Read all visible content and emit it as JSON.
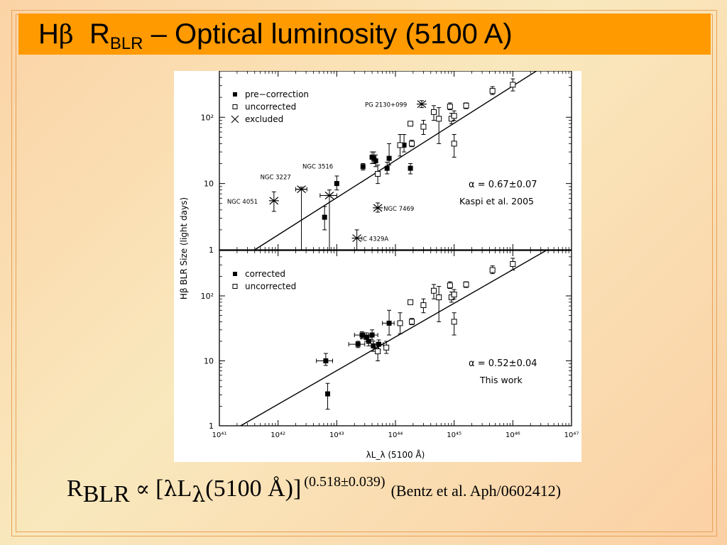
{
  "slide": {
    "title": {
      "prefix": "H",
      "beta": "β",
      "r": "R",
      "sub": "BLR",
      "rest": " – Optical luminosity (5100 A)"
    },
    "formula": {
      "r": "R",
      "sub": "BLR",
      "propto": "∝",
      "open": "[",
      "lambda": "λ",
      "l": "L",
      "lsub": "λ",
      "arg": "(5100 Å)]",
      "exponent": "(0.518±0.039)",
      "citation": "(Bentz et al.  Aph/0602412)"
    },
    "colors": {
      "title_bar": "#ff9a00",
      "frame": "#e8a25a"
    }
  },
  "chart_data": [
    {
      "type": "scatter",
      "panel": "top",
      "xscale": "log",
      "yscale": "log",
      "xlim": [
        1e+41,
        1e+47
      ],
      "ylim": [
        1,
        500
      ],
      "ylabel": "Hβ BLR Size (light days)",
      "xlabel": "",
      "y_ticks": [
        "1",
        "10",
        "10²"
      ],
      "legend": [
        {
          "marker": "filled-square",
          "label": "pre−correction"
        },
        {
          "marker": "open-square",
          "label": "uncorrected"
        },
        {
          "marker": "cross",
          "label": "excluded"
        }
      ],
      "legend_position": "top-left",
      "annotation": [
        "α = 0.67±0.07",
        "Kaspi et al. 2005"
      ],
      "fit_line": {
        "slope": 0.67,
        "points": [
          [
            4e+41,
            1.0
          ],
          [
            4.6e+46,
            700
          ]
        ]
      },
      "series": [
        {
          "name": "pre−correction",
          "marker": "filled-square",
          "points": [
            {
              "x": 6.2e+42,
              "y": 3.1,
              "yerr": [
                2.0,
                4.5
              ]
            },
            {
              "x": 1e+43,
              "y": 10,
              "yerr": [
                8,
                13
              ]
            },
            {
              "x": 2.8e+43,
              "y": 18,
              "yerr": [
                16,
                20
              ]
            },
            {
              "x": 4e+43,
              "y": 25,
              "yerr": [
                20,
                30
              ]
            },
            {
              "x": 4.3e+43,
              "y": 24,
              "yerr": [
                20,
                30
              ]
            },
            {
              "x": 4.6e+43,
              "y": 22,
              "yerr": [
                18,
                27
              ]
            },
            {
              "x": 7.2e+43,
              "y": 17,
              "yerr": [
                14,
                21
              ]
            },
            {
              "x": 7.8e+43,
              "y": 24,
              "yerr": [
                19,
                40
              ]
            },
            {
              "x": 1.4e+44,
              "y": 38,
              "yerr": [
                30,
                55
              ]
            },
            {
              "x": 1.8e+44,
              "y": 17,
              "yerr": [
                14,
                20
              ]
            }
          ]
        },
        {
          "name": "uncorrected",
          "marker": "open-square",
          "points": [
            {
              "x": 5e+43,
              "y": 14,
              "yerr": [
                10,
                19
              ]
            },
            {
              "x": 1.2e+44,
              "y": 38,
              "yerr": [
                26,
                55
              ]
            },
            {
              "x": 1.8e+44,
              "y": 80,
              "yerr": [
                75,
                86
              ]
            },
            {
              "x": 1.9e+44,
              "y": 40,
              "yerr": [
                36,
                45
              ]
            },
            {
              "x": 3e+44,
              "y": 72,
              "yerr": [
                55,
                90
              ]
            },
            {
              "x": 4.5e+44,
              "y": 120,
              "yerr": [
                90,
                150
              ]
            },
            {
              "x": 5.5e+44,
              "y": 95,
              "yerr": [
                40,
                140
              ]
            },
            {
              "x": 8.5e+44,
              "y": 145,
              "yerr": [
                130,
                165
              ]
            },
            {
              "x": 9e+44,
              "y": 95,
              "yerr": [
                80,
                115
              ]
            },
            {
              "x": 1e+45,
              "y": 105,
              "yerr": [
                90,
                125
              ]
            },
            {
              "x": 1e+45,
              "y": 40,
              "yerr": [
                25,
                55
              ]
            },
            {
              "x": 1.6e+45,
              "y": 150,
              "yerr": [
                135,
                165
              ]
            },
            {
              "x": 4.5e+45,
              "y": 250,
              "yerr": [
                220,
                290
              ]
            },
            {
              "x": 1e+46,
              "y": 310,
              "yerr": [
                250,
                380
              ]
            }
          ]
        },
        {
          "name": "excluded",
          "marker": "cross",
          "points": [
            {
              "x": 8.5e+41,
              "y": 5.5,
              "yerr": [
                3.8,
                7.5
              ],
              "label": "NGC 4051"
            },
            {
              "x": 2.5e+42,
              "y": 8.2,
              "yerr": [
                1.0,
                8.8
              ],
              "label": "NGC 3227",
              "xerr": [
                2e+42,
                3.1e+42
              ]
            },
            {
              "x": 7.5e+42,
              "y": 6.6,
              "yerr": [
                1.0,
                8.0
              ],
              "label": "NGC 3516",
              "xerr": [
                5.2e+42,
                1e+43
              ]
            },
            {
              "x": 2.2e+43,
              "y": 1.5,
              "yerr": [
                1.0,
                2.0
              ],
              "label": "IC 4329A"
            },
            {
              "x": 5e+43,
              "y": 4.3,
              "yerr": [
                3.7,
                5.1
              ],
              "label": "NGC 7469"
            },
            {
              "x": 2.8e+44,
              "y": 158,
              "yerr": [
                140,
                178
              ],
              "label": "PG 2130+099"
            }
          ]
        }
      ]
    },
    {
      "type": "scatter",
      "panel": "bottom",
      "xscale": "log",
      "yscale": "log",
      "xlim": [
        1e+41,
        1e+47
      ],
      "ylim": [
        1,
        500
      ],
      "xlabel": "λL_λ (5100 Å)",
      "ylabel": "Hβ BLR Size (light days)",
      "x_ticks": [
        "10⁴¹",
        "10⁴²",
        "10⁴³",
        "10⁴⁴",
        "10⁴⁵",
        "10⁴⁶",
        "10⁴⁷"
      ],
      "y_ticks": [
        "1",
        "10",
        "10²"
      ],
      "legend": [
        {
          "marker": "filled-square",
          "label": "corrected"
        },
        {
          "marker": "open-square",
          "label": "uncorrected"
        }
      ],
      "legend_position": "top-left",
      "annotation": [
        "α = 0.52±0.04",
        "This work"
      ],
      "fit_line": {
        "slope": 0.52,
        "points": [
          [
            2.3e+41,
            1.0
          ],
          [
            4.6e+46,
            560
          ]
        ]
      },
      "series": [
        {
          "name": "corrected",
          "marker": "filled-square",
          "points": [
            {
              "x": 6.5e+42,
              "y": 10,
              "yerr": [
                8.5,
                13
              ],
              "xerr": [
                4.5e+42,
                8.5e+42
              ]
            },
            {
              "x": 7e+42,
              "y": 3.1,
              "yerr": [
                1.8,
                4.5
              ]
            },
            {
              "x": 2.3e+43,
              "y": 18,
              "yerr": [
                16,
                20
              ],
              "xerr": [
                1.6e+43,
                3e+43
              ]
            },
            {
              "x": 2.7e+43,
              "y": 25,
              "yerr": [
                22,
                28
              ],
              "xerr": [
                2e+43,
                3.5e+43
              ]
            },
            {
              "x": 3.2e+43,
              "y": 23,
              "yerr": [
                20,
                27
              ],
              "xerr": [
                2.6e+43,
                4e+43
              ]
            },
            {
              "x": 3.5e+43,
              "y": 20,
              "yerr": [
                17,
                24
              ]
            },
            {
              "x": 4e+43,
              "y": 25,
              "yerr": [
                21,
                30
              ],
              "xerr": [
                3e+43,
                5e+43
              ]
            },
            {
              "x": 4.2e+43,
              "y": 17,
              "yerr": [
                14,
                20
              ]
            },
            {
              "x": 5.2e+43,
              "y": 18,
              "yerr": [
                15,
                21
              ],
              "xerr": [
                4.2e+43,
                6.2e+43
              ]
            },
            {
              "x": 7.8e+43,
              "y": 38,
              "yerr": [
                25,
                60
              ],
              "xerr": [
                6e+43,
                9.5e+43
              ]
            }
          ]
        },
        {
          "name": "uncorrected",
          "marker": "open-square",
          "points": [
            {
              "x": 5e+43,
              "y": 14,
              "yerr": [
                10,
                19
              ]
            },
            {
              "x": 7e+43,
              "y": 16,
              "yerr": [
                13,
                20
              ]
            },
            {
              "x": 1.2e+44,
              "y": 38,
              "yerr": [
                26,
                55
              ]
            },
            {
              "x": 1.8e+44,
              "y": 80,
              "yerr": [
                75,
                86
              ]
            },
            {
              "x": 1.9e+44,
              "y": 40,
              "yerr": [
                36,
                45
              ]
            },
            {
              "x": 3e+44,
              "y": 72,
              "yerr": [
                55,
                90
              ]
            },
            {
              "x": 4.5e+44,
              "y": 120,
              "yerr": [
                90,
                150
              ]
            },
            {
              "x": 5.5e+44,
              "y": 95,
              "yerr": [
                40,
                140
              ]
            },
            {
              "x": 8.5e+44,
              "y": 145,
              "yerr": [
                130,
                165
              ]
            },
            {
              "x": 9e+44,
              "y": 95,
              "yerr": [
                80,
                115
              ]
            },
            {
              "x": 1e+45,
              "y": 105,
              "yerr": [
                90,
                125
              ]
            },
            {
              "x": 1e+45,
              "y": 40,
              "yerr": [
                25,
                55
              ]
            },
            {
              "x": 1.6e+45,
              "y": 150,
              "yerr": [
                135,
                165
              ]
            },
            {
              "x": 4.5e+45,
              "y": 250,
              "yerr": [
                220,
                290
              ]
            },
            {
              "x": 1e+46,
              "y": 310,
              "yerr": [
                250,
                380
              ]
            }
          ]
        }
      ]
    }
  ]
}
